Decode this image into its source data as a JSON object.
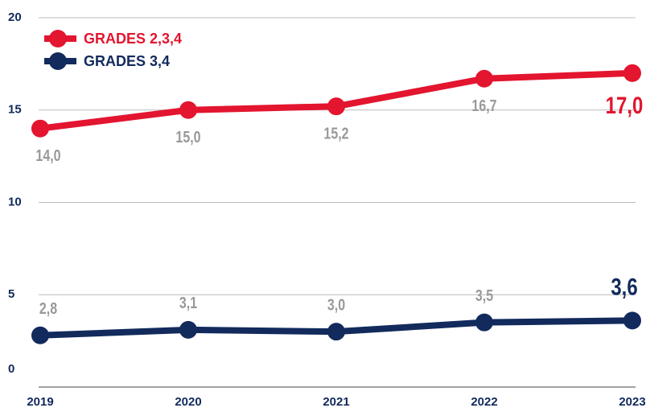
{
  "chart_data": {
    "type": "line",
    "categories": [
      "2019",
      "2020",
      "2021",
      "2022",
      "2023"
    ],
    "series": [
      {
        "name": "GRADES 2,3,4",
        "color": "#e3152f",
        "values": [
          14.0,
          15.0,
          15.2,
          16.7,
          17.0
        ],
        "value_labels": [
          "14,0",
          "15,0",
          "15,2",
          "16,7",
          "17,0"
        ]
      },
      {
        "name": "GRADES 3,4",
        "color": "#122a5c",
        "values": [
          2.8,
          3.1,
          3.0,
          3.5,
          3.6
        ],
        "value_labels": [
          "2,8",
          "3,1",
          "3,0",
          "3,5",
          "3,6"
        ]
      }
    ],
    "ylim": [
      0,
      20
    ],
    "yticks": [
      0,
      5,
      10,
      15,
      20
    ],
    "grid": true,
    "legend": "top-left"
  }
}
